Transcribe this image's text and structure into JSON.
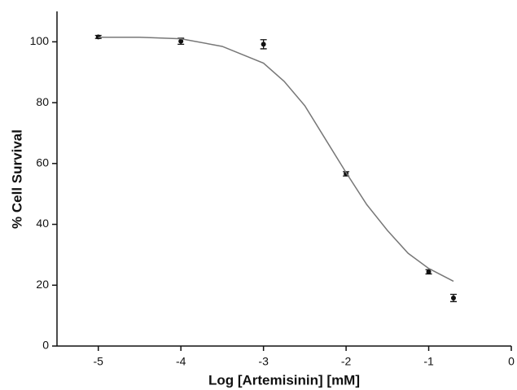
{
  "chart_data": {
    "type": "scatter",
    "x_label": "Log [Artemisinin] [mM]",
    "y_label": "% Cell Survival",
    "xlim": [
      -5.5,
      0
    ],
    "ylim": [
      0,
      110
    ],
    "xticks": [
      -5,
      -4,
      -3,
      -2,
      -1,
      0
    ],
    "yticks": [
      0,
      20,
      40,
      60,
      80,
      100
    ],
    "series": [
      {
        "style": "points",
        "color": "#111111",
        "x": [
          -5,
          -4,
          -3,
          -2,
          -1,
          -0.7
        ],
        "values": [
          101.6,
          100.2,
          99.2,
          56.6,
          24.4,
          15.8
        ],
        "errors": [
          0.5,
          1,
          1.5,
          0.7,
          0.7,
          1.2
        ]
      },
      {
        "style": "line",
        "color": "#777777",
        "x": [
          -5,
          -4.5,
          -4,
          -3.5,
          -3,
          -2.75,
          -2.5,
          -2.25,
          -2,
          -1.75,
          -1.5,
          -1.25,
          -1,
          -0.7
        ],
        "values": [
          101.5,
          101.5,
          101,
          98.5,
          93,
          87,
          79,
          68,
          57,
          46.5,
          38,
          30.5,
          25.5,
          21.3
        ]
      }
    ]
  }
}
